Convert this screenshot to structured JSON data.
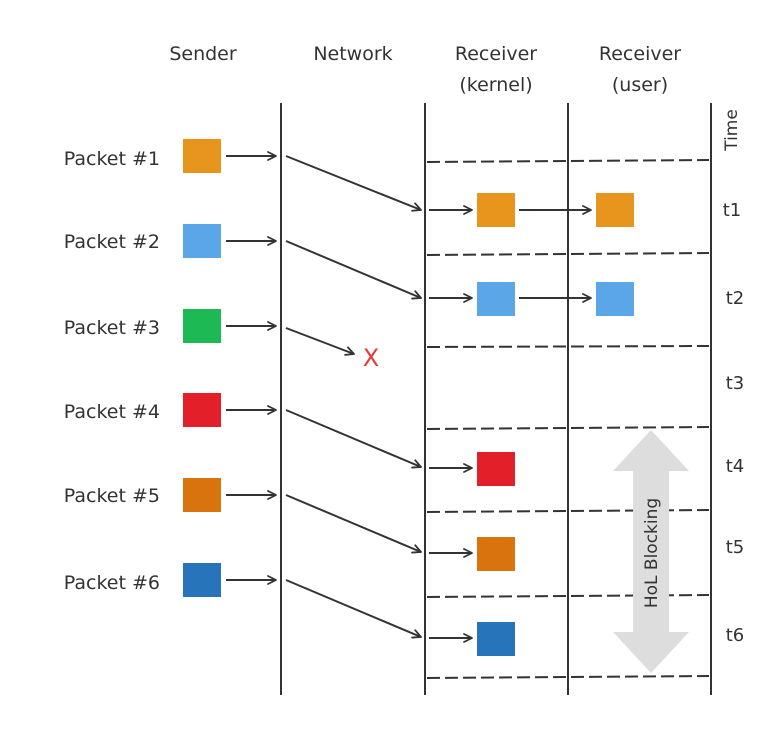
{
  "columns": {
    "sender": "Sender",
    "network": "Network",
    "receiver_kernel_line1": "Receiver",
    "receiver_kernel_line2": "(kernel)",
    "receiver_user_line1": "Receiver",
    "receiver_user_line2": "(user)"
  },
  "time_label": "Time",
  "packets": [
    {
      "label": "Packet #1",
      "color": "#E8951E"
    },
    {
      "label": "Packet #2",
      "color": "#5AA6E6"
    },
    {
      "label": "Packet #3",
      "color": "#1DB954"
    },
    {
      "label": "Packet #4",
      "color": "#E3202A"
    },
    {
      "label": "Packet #5",
      "color": "#D9730D"
    },
    {
      "label": "Packet #6",
      "color": "#2774BA"
    }
  ],
  "time_slots": [
    "t1",
    "t2",
    "t3",
    "t4",
    "t5",
    "t6"
  ],
  "lost_marker": "X",
  "lost_color": "#E53935",
  "hol_label": "HoL Blocking",
  "hol_color": "#DDDDDD"
}
